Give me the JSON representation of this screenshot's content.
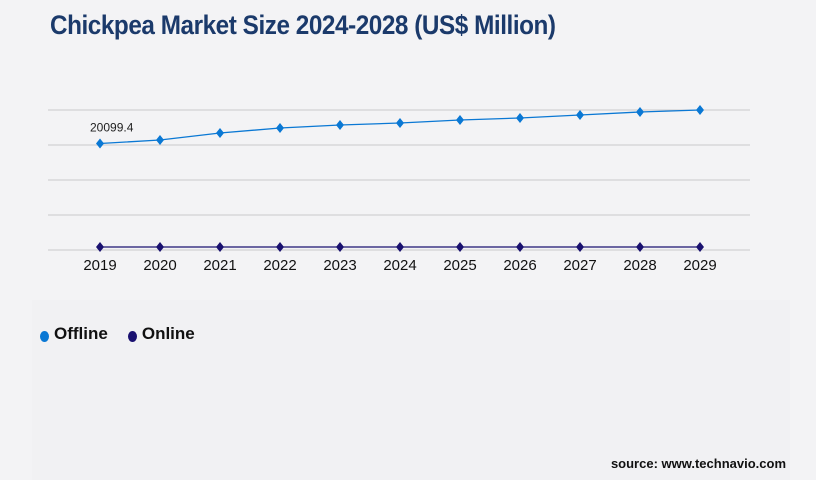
{
  "chart_data": {
    "type": "line",
    "title": "Chickpea Market Size 2024-2028 (US$ Million)",
    "xlabel": "",
    "ylabel": "",
    "x": [
      "2019",
      "2020",
      "2021",
      "2022",
      "2023",
      "2024",
      "2025",
      "2026",
      "2027",
      "2028",
      "2029"
    ],
    "ylim": [
      0,
      26422
    ],
    "grid": true,
    "legend_position": "bottom-left",
    "series": [
      {
        "name": "Offline",
        "color": "#0a78d4",
        "values": [
          20099.4,
          20760,
          22081,
          23025,
          23591,
          23969,
          24535,
          24912,
          25479,
          26045,
          26422
        ]
      },
      {
        "name": "Online",
        "color": "#1a1170",
        "values": [
          566,
          566,
          566,
          566,
          566,
          566,
          566,
          566,
          566,
          566,
          566
        ]
      }
    ],
    "annotations": [
      {
        "series": "Offline",
        "x": "2019",
        "text": "20099.4"
      }
    ]
  },
  "source": "source: www.technavio.com"
}
